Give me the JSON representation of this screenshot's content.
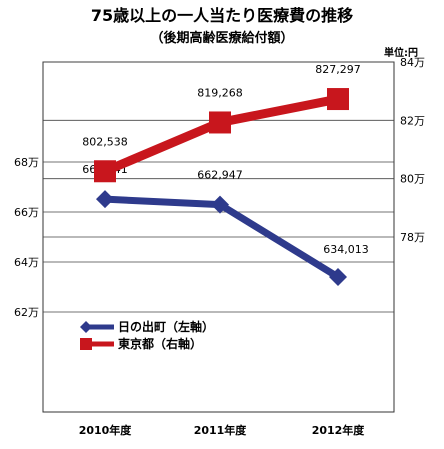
{
  "chart_data": {
    "type": "line",
    "title": "75歳以上の一人当たり医療費の推移",
    "subtitle": "（後期高齢医療給付額）",
    "unit_label": "単位:円",
    "categories": [
      "2010年度",
      "2011年度",
      "2012年度"
    ],
    "series": [
      {
        "name": "日の出町（左軸）",
        "axis": "left",
        "color": "#2e3a8c",
        "marker": "diamond",
        "values": [
          665141,
          662947,
          634013
        ],
        "data_labels": [
          "665,141",
          "662,947",
          "634,013"
        ]
      },
      {
        "name": "東京都（右軸）",
        "axis": "right",
        "color": "#c8161d",
        "marker": "square",
        "values": [
          802538,
          819268,
          827297
        ],
        "data_labels": [
          "802,538",
          "819,268",
          "827,297"
        ]
      }
    ],
    "y_left": {
      "ticks": [
        620000,
        640000,
        660000,
        680000
      ],
      "tick_labels": [
        "62万",
        "64万",
        "66万",
        "68万"
      ],
      "range": [
        580000,
        720000
      ]
    },
    "y_right": {
      "ticks": [
        780000,
        800000,
        820000,
        840000
      ],
      "tick_labels": [
        "78万",
        "80万",
        "82万",
        "84万"
      ],
      "range": [
        720000,
        840000
      ]
    },
    "grid": true,
    "legend_position": "lower-left"
  }
}
